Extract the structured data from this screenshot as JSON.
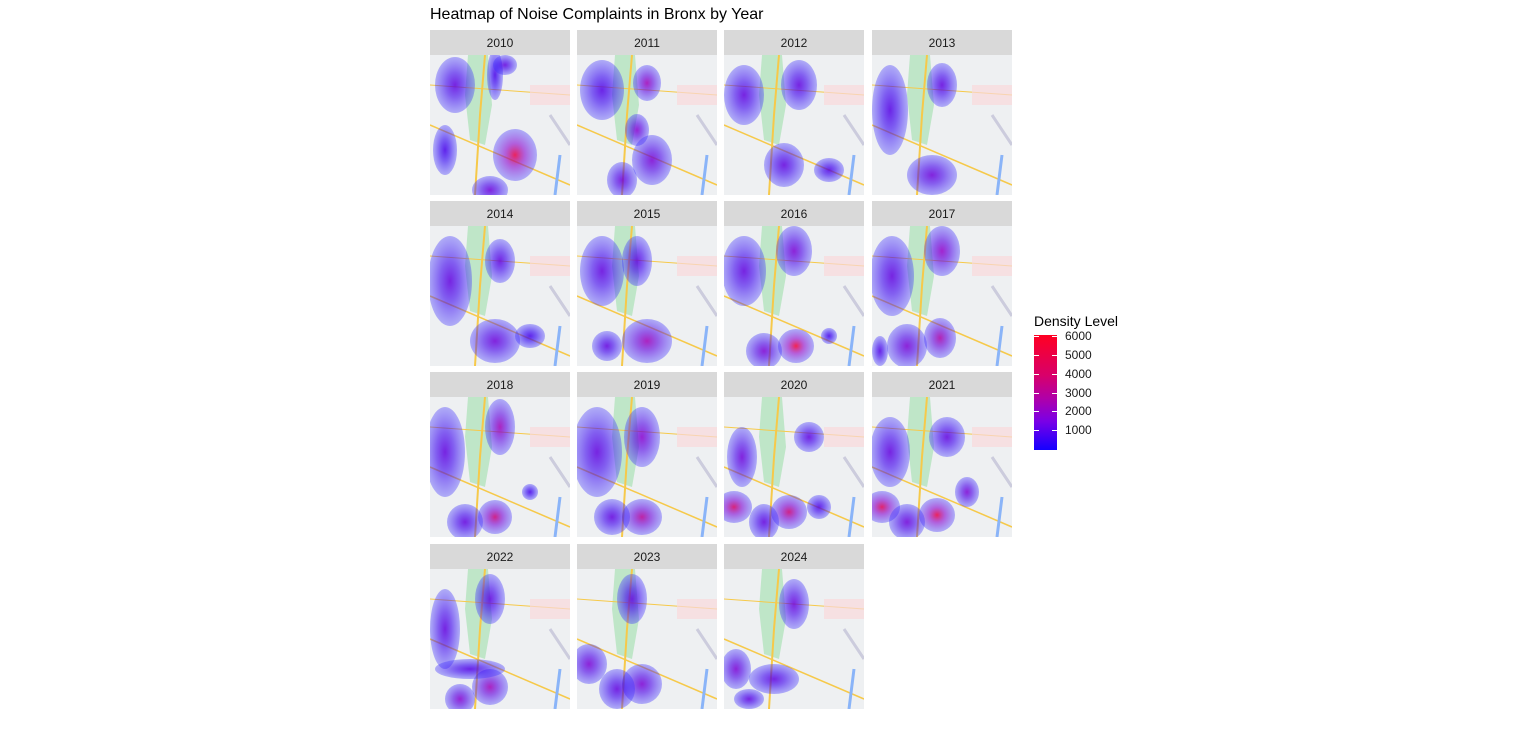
{
  "chart_data": {
    "type": "heatmap",
    "title": "Heatmap of Noise Complaints in Bronx by Year",
    "subplot_type": "faceted density heatmap over map tiles",
    "facets": [
      "2010",
      "2011",
      "2012",
      "2013",
      "2014",
      "2015",
      "2016",
      "2017",
      "2018",
      "2019",
      "2020",
      "2021",
      "2022",
      "2023",
      "2024"
    ],
    "facet_layout": {
      "columns": 4,
      "rows": 4
    },
    "legend": {
      "title": "Density Level",
      "ticks": [
        1000,
        2000,
        3000,
        4000,
        5000,
        6000
      ],
      "range": [
        0,
        6000
      ],
      "color_low": "#1400ff",
      "color_high": "#ff0022",
      "position": "right"
    },
    "hotspots": [
      {
        "year": "2010",
        "peak": "south-center",
        "max_level": "high"
      },
      {
        "year": "2011",
        "peak": "north-center",
        "max_level": "medium"
      },
      {
        "year": "2016",
        "peak": "south-center",
        "max_level": "high"
      },
      {
        "year": "2020",
        "peak": "southwest",
        "max_level": "high"
      },
      {
        "year": "2021",
        "peak": "south-center",
        "max_level": "high"
      }
    ],
    "xlabel": "",
    "ylabel": ""
  }
}
